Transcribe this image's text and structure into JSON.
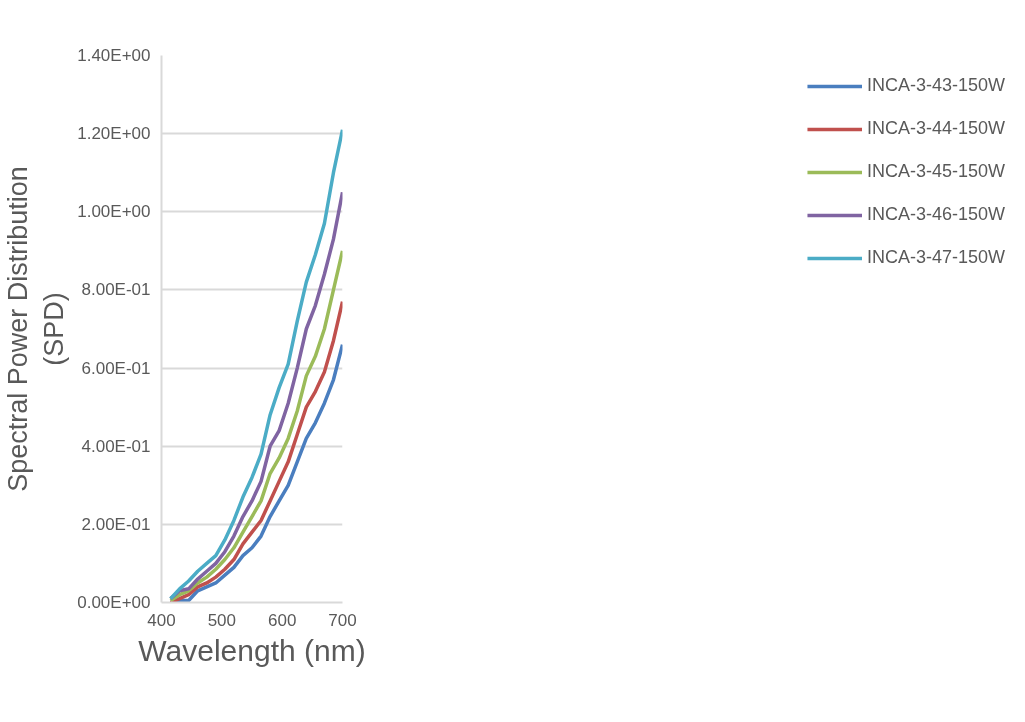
{
  "chart_data": {
    "type": "line",
    "xlabel": "Wavelength (nm)",
    "ylabel": "Spectral Power Distribution\n(SPD)",
    "x": [
      415,
      430,
      445,
      460,
      475,
      490,
      505,
      520,
      535,
      550,
      565,
      580,
      595,
      610,
      625,
      640,
      655,
      670,
      685,
      700
    ],
    "xlim": [
      400,
      700
    ],
    "xticks": [
      400,
      500,
      600,
      700
    ],
    "ylim": [
      0,
      1.4
    ],
    "yticks": [
      {
        "value": 0,
        "label": "0.00E+00"
      },
      {
        "value": 0.2,
        "label": "2.00E-01"
      },
      {
        "value": 0.4,
        "label": "4.00E-01"
      },
      {
        "value": 0.6,
        "label": "6.00E-01"
      },
      {
        "value": 0.8,
        "label": "8.00E-01"
      },
      {
        "value": 1.0,
        "label": "1.00E+00"
      },
      {
        "value": 1.2,
        "label": "1.20E+00"
      },
      {
        "value": 1.4,
        "label": "1.40E+00"
      }
    ],
    "grid": "y",
    "legend": "right",
    "line_style": "solid",
    "series": [
      {
        "name": "INCA-3-43-150W",
        "color": "#4a7ebf",
        "values": [
          0.0,
          0.005,
          0.005,
          0.03,
          0.04,
          0.05,
          0.07,
          0.09,
          0.12,
          0.14,
          0.17,
          0.22,
          0.26,
          0.3,
          0.36,
          0.42,
          0.46,
          0.51,
          0.57,
          0.66
        ]
      },
      {
        "name": "INCA-3-44-150W",
        "color": "#c0504d",
        "values": [
          0.0,
          0.01,
          0.02,
          0.04,
          0.05,
          0.065,
          0.085,
          0.11,
          0.15,
          0.18,
          0.21,
          0.26,
          0.31,
          0.36,
          0.43,
          0.5,
          0.54,
          0.59,
          0.67,
          0.77
        ]
      },
      {
        "name": "INCA-3-45-150W",
        "color": "#9bbb59",
        "values": [
          0.005,
          0.02,
          0.03,
          0.05,
          0.065,
          0.085,
          0.11,
          0.14,
          0.18,
          0.22,
          0.26,
          0.33,
          0.37,
          0.42,
          0.49,
          0.58,
          0.63,
          0.7,
          0.8,
          0.9
        ]
      },
      {
        "name": "INCA-3-46-150W",
        "color": "#8064a2",
        "values": [
          0.01,
          0.03,
          0.035,
          0.06,
          0.08,
          0.1,
          0.13,
          0.17,
          0.22,
          0.26,
          0.31,
          0.4,
          0.44,
          0.51,
          0.6,
          0.7,
          0.76,
          0.84,
          0.93,
          1.05
        ]
      },
      {
        "name": "INCA-3-47-150W",
        "color": "#4bacc6",
        "values": [
          0.01,
          0.035,
          0.055,
          0.08,
          0.1,
          0.12,
          0.16,
          0.21,
          0.27,
          0.32,
          0.38,
          0.48,
          0.55,
          0.61,
          0.72,
          0.82,
          0.89,
          0.97,
          1.1,
          1.21
        ]
      }
    ]
  }
}
